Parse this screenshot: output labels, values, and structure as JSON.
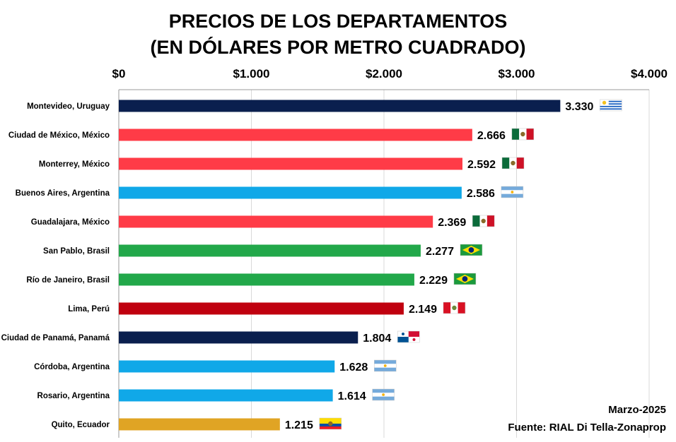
{
  "chart_data": {
    "type": "bar",
    "orientation": "horizontal",
    "title": [
      "PRECIOS DE LOS DEPARTAMENTOS",
      "(EN DÓLARES POR METRO CUADRADO)"
    ],
    "xlim": [
      0,
      4000
    ],
    "ticks": [
      0,
      1000,
      2000,
      3000,
      4000
    ],
    "tick_labels": [
      "$0",
      "$1.000",
      "$2.000",
      "$3.000",
      "$4.000"
    ],
    "axis_position": "top",
    "grid": true,
    "categories": [
      "Montevideo, Uruguay",
      "Ciudad de México, México",
      "Monterrey, México",
      "Buenos Aires, Argentina",
      "Guadalajara, México",
      "San Pablo, Brasil",
      "Río de Janeiro, Brasil",
      "Lima, Perú",
      "Ciudad de Panamá, Panamá",
      "Córdoba, Argentina",
      "Rosario, Argentina",
      "Quito, Ecuador"
    ],
    "values": [
      3330,
      2666,
      2592,
      2586,
      2369,
      2277,
      2229,
      2149,
      1804,
      1628,
      1614,
      1215
    ],
    "value_labels": [
      "3.330",
      "2.666",
      "2.592",
      "2.586",
      "2.369",
      "2.277",
      "2.229",
      "2.149",
      "1.804",
      "1.628",
      "1.614",
      "1.215"
    ],
    "colors": [
      "#0a1f4e",
      "#ff3b47",
      "#ff3b47",
      "#10a8e8",
      "#ff3b47",
      "#22a84a",
      "#22a84a",
      "#c0000f",
      "#0a1f4e",
      "#10a8e8",
      "#10a8e8",
      "#e0a424"
    ],
    "flags": [
      "uruguay-flag",
      "mexico-flag",
      "mexico-flag",
      "argentina-flag",
      "mexico-flag",
      "brazil-flag",
      "brazil-flag",
      "peru-flag",
      "panama-flag",
      "argentina-flag",
      "argentina-flag",
      "ecuador-flag"
    ]
  },
  "footer": {
    "date": "Marzo-2025",
    "source": "Fuente: RIAL Di Tella-Zonaprop"
  }
}
